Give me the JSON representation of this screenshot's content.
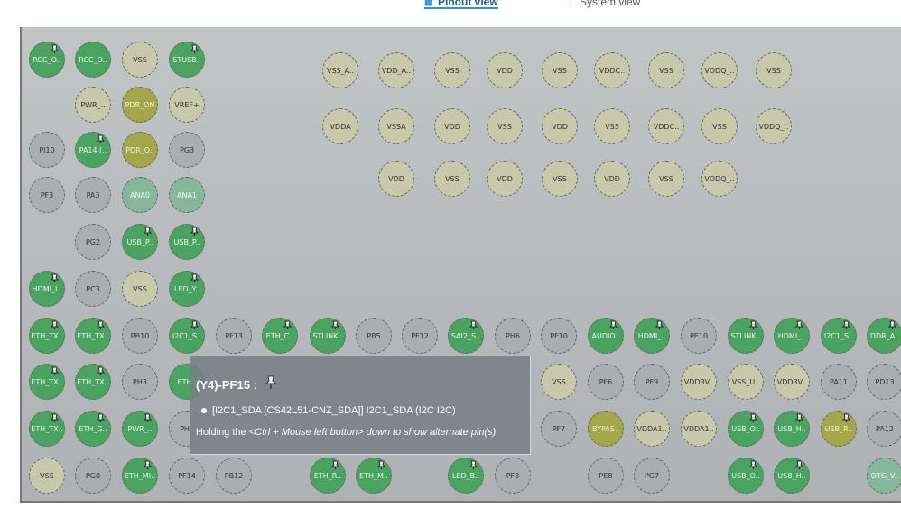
{
  "tabs": [
    {
      "label": "Pinout view",
      "active": true
    },
    {
      "label": "System view",
      "active": false
    }
  ],
  "tooltip": {
    "title": "(Y4)-PF15 :",
    "item": "[I2C1_SDA [CS42L51-CNZ_SDA]] I2C1_SDA (I2C I2C)",
    "hint_pre": "Holding the ",
    "hint_em": "<Ctrl + Mouse left button> down to show alternate pin(s)"
  },
  "pins": [
    {
      "label": "RCC_O..",
      "color": "green",
      "pinned": true
    },
    {
      "label": "RCC_O..",
      "color": "green",
      "pinned": false
    },
    {
      "label": "VSS",
      "color": "beige",
      "pinned": false
    },
    {
      "label": "STUSB..",
      "color": "green",
      "pinned": true
    },
    {
      "label": "VSS_A..",
      "color": "beige",
      "pinned": false
    },
    {
      "label": "VDD_A..",
      "color": "beige",
      "pinned": false
    },
    {
      "label": "VSS",
      "color": "beige",
      "pinned": false
    },
    {
      "label": "VDD",
      "color": "beige",
      "pinned": false
    },
    {
      "label": "VSS",
      "color": "beige",
      "pinned": false
    },
    {
      "label": "VDDC..",
      "color": "beige",
      "pinned": false
    },
    {
      "label": "VSS",
      "color": "beige",
      "pinned": false
    },
    {
      "label": "VDDQ_..",
      "color": "beige",
      "pinned": false
    },
    {
      "label": "VSS",
      "color": "beige",
      "pinned": false
    },
    {
      "label": "PWR_..",
      "color": "beige",
      "pinned": false
    },
    {
      "label": "PDR_ON",
      "color": "olive",
      "pinned": false
    },
    {
      "label": "VREF+",
      "color": "beige",
      "pinned": false
    },
    {
      "label": "VDDA",
      "color": "beige",
      "pinned": false
    },
    {
      "label": "VSSA",
      "color": "beige",
      "pinned": false
    },
    {
      "label": "VDD",
      "color": "beige",
      "pinned": false
    },
    {
      "label": "VSS",
      "color": "beige",
      "pinned": false
    },
    {
      "label": "VDD",
      "color": "beige",
      "pinned": false
    },
    {
      "label": "VSS",
      "color": "beige",
      "pinned": false
    },
    {
      "label": "VDDC..",
      "color": "beige",
      "pinned": false
    },
    {
      "label": "VSS",
      "color": "beige",
      "pinned": false
    },
    {
      "label": "VDDQ_..",
      "color": "beige",
      "pinned": false
    },
    {
      "label": "PI10",
      "color": "gray",
      "pinned": false
    },
    {
      "label": "PA14 [..",
      "color": "green",
      "pinned": true
    },
    {
      "label": "PDR_O..",
      "color": "olive",
      "pinned": false
    },
    {
      "label": "PG3",
      "color": "gray",
      "pinned": false
    },
    {
      "label": "VDD",
      "color": "beige",
      "pinned": false
    },
    {
      "label": "VSS",
      "color": "beige",
      "pinned": false
    },
    {
      "label": "VDD",
      "color": "beige",
      "pinned": false
    },
    {
      "label": "VSS",
      "color": "beige",
      "pinned": false
    },
    {
      "label": "VDD",
      "color": "beige",
      "pinned": false
    },
    {
      "label": "VSS",
      "color": "beige",
      "pinned": false
    },
    {
      "label": "VDDQ_..",
      "color": "beige",
      "pinned": false
    },
    {
      "label": "PF3",
      "color": "gray",
      "pinned": false
    },
    {
      "label": "PA3",
      "color": "gray",
      "pinned": false
    },
    {
      "label": "ANA0",
      "color": "teal",
      "pinned": false
    },
    {
      "label": "ANA1",
      "color": "teal",
      "pinned": false
    },
    {
      "label": "PG2",
      "color": "gray",
      "pinned": false
    },
    {
      "label": "USB_P..",
      "color": "green",
      "pinned": true
    },
    {
      "label": "USB_P..",
      "color": "green",
      "pinned": true
    },
    {
      "label": "HDMI_I..",
      "color": "green",
      "pinned": true
    },
    {
      "label": "PC3",
      "color": "gray",
      "pinned": false
    },
    {
      "label": "VSS",
      "color": "beige",
      "pinned": false
    },
    {
      "label": "LED_Y..",
      "color": "green",
      "pinned": true
    },
    {
      "label": "ETH_TX..",
      "color": "green",
      "pinned": true
    },
    {
      "label": "ETH_TX..",
      "color": "green",
      "pinned": true
    },
    {
      "label": "PB10",
      "color": "gray",
      "pinned": false
    },
    {
      "label": "I2C1_S..",
      "color": "green",
      "pinned": true
    },
    {
      "label": "PF13",
      "color": "gray",
      "pinned": false
    },
    {
      "label": "ETH_C..",
      "color": "green",
      "pinned": true
    },
    {
      "label": "STLINK..",
      "color": "green",
      "pinned": true
    },
    {
      "label": "PB5",
      "color": "gray",
      "pinned": false
    },
    {
      "label": "PF12",
      "color": "gray",
      "pinned": false
    },
    {
      "label": "SAI2_S..",
      "color": "green",
      "pinned": true
    },
    {
      "label": "PH6",
      "color": "gray",
      "pinned": false
    },
    {
      "label": "PF10",
      "color": "gray",
      "pinned": false
    },
    {
      "label": "AUDIO..",
      "color": "green",
      "pinned": true
    },
    {
      "label": "HDMI_..",
      "color": "green",
      "pinned": true
    },
    {
      "label": "PE10",
      "color": "gray",
      "pinned": false
    },
    {
      "label": "STLINK..",
      "color": "green",
      "pinned": true
    },
    {
      "label": "HDMI_..",
      "color": "green",
      "pinned": true
    },
    {
      "label": "I2C1_S..",
      "color": "green",
      "pinned": true
    },
    {
      "label": "DDR_A..",
      "color": "green",
      "pinned": true
    },
    {
      "label": "ETH_TX..",
      "color": "green",
      "pinned": true
    },
    {
      "label": "ETH_TX..",
      "color": "green",
      "pinned": true
    },
    {
      "label": "PH3",
      "color": "gray",
      "pinned": false
    },
    {
      "label": "ETH..",
      "color": "green",
      "pinned": false
    },
    {
      "label": "VSS",
      "color": "beige",
      "pinned": false
    },
    {
      "label": "PF6",
      "color": "gray",
      "pinned": false
    },
    {
      "label": "PF9",
      "color": "gray",
      "pinned": false
    },
    {
      "label": "VDD3V..",
      "color": "beige",
      "pinned": false
    },
    {
      "label": "VSS_U..",
      "color": "beige",
      "pinned": false
    },
    {
      "label": "VDD3V..",
      "color": "beige",
      "pinned": false
    },
    {
      "label": "PA11",
      "color": "gray",
      "pinned": false
    },
    {
      "label": "PD13",
      "color": "gray",
      "pinned": false
    },
    {
      "label": "ETH_TX..",
      "color": "green",
      "pinned": true
    },
    {
      "label": "ETH_G..",
      "color": "green",
      "pinned": true
    },
    {
      "label": "PWR_..",
      "color": "green",
      "pinned": true
    },
    {
      "label": "PH..",
      "color": "gray",
      "pinned": false
    },
    {
      "label": "PF7",
      "color": "gray",
      "pinned": false
    },
    {
      "label": "BYPAS..",
      "color": "olive",
      "pinned": false
    },
    {
      "label": "VDDA1..",
      "color": "beige",
      "pinned": false
    },
    {
      "label": "VDDA1..",
      "color": "beige",
      "pinned": false
    },
    {
      "label": "USB_O..",
      "color": "green",
      "pinned": true
    },
    {
      "label": "USB_H..",
      "color": "green",
      "pinned": true
    },
    {
      "label": "USB_R..",
      "color": "olive",
      "pinned": true
    },
    {
      "label": "PA12",
      "color": "gray",
      "pinned": false
    },
    {
      "label": "VSS",
      "color": "beige",
      "pinned": false
    },
    {
      "label": "PG0",
      "color": "gray",
      "pinned": false
    },
    {
      "label": "ETH_MI..",
      "color": "green",
      "pinned": true
    },
    {
      "label": "PF14",
      "color": "gray",
      "pinned": false
    },
    {
      "label": "PB12",
      "color": "gray",
      "pinned": false
    },
    {
      "label": "ETH_R..",
      "color": "green",
      "pinned": true
    },
    {
      "label": "ETH_M..",
      "color": "green",
      "pinned": true
    },
    {
      "label": "LED_B..",
      "color": "green",
      "pinned": true
    },
    {
      "label": "PF8",
      "color": "gray",
      "pinned": false
    },
    {
      "label": "PE8",
      "color": "gray",
      "pinned": false
    },
    {
      "label": "PG7",
      "color": "gray",
      "pinned": false
    },
    {
      "label": "USB_O..",
      "color": "green",
      "pinned": true
    },
    {
      "label": "USB_H..",
      "color": "green",
      "pinned": true
    },
    {
      "label": "OTG_V..",
      "color": "teal",
      "pinned": false
    }
  ]
}
